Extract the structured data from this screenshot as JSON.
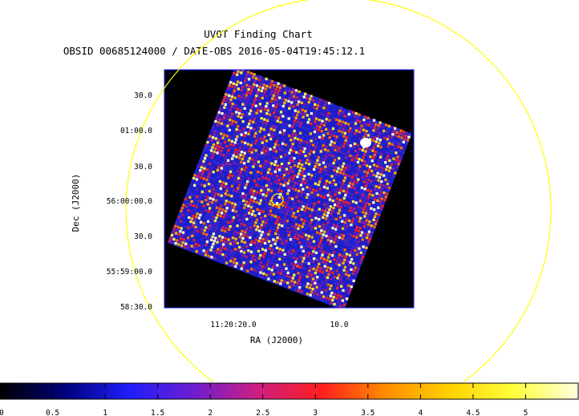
{
  "chart_data": {
    "type": "heatmap",
    "title": "UVOT Finding Chart",
    "subtitle": "OBSID 00685124000 / DATE-OBS 2016-05-04T19:45:12.1",
    "xlabel": "RA (J2000)",
    "ylabel": "Dec (J2000)",
    "x_ticks": [
      {
        "label": "11:20:20.0",
        "value": "11:20:20.0"
      },
      {
        "label": "10.0",
        "value": "11:20:10.0"
      }
    ],
    "y_ticks": [
      {
        "label": "30.0",
        "value": "+56:01:30.0"
      },
      {
        "label": "01:00.0",
        "value": "+56:01:00.0"
      },
      {
        "label": "30.0",
        "value": "+56:00:30.0"
      },
      {
        "label": "56:00:00.0",
        "value": "+56:00:00.0"
      },
      {
        "label": "30.0",
        "value": "+55:59:30.0"
      },
      {
        "label": "55:59:00.0",
        "value": "+55:59:00.0"
      },
      {
        "label": "58:30.0",
        "value": "+55:58:30.0"
      }
    ],
    "colorbar": {
      "range": [
        0,
        5.5
      ],
      "ticks": [
        "0",
        "0.5",
        "1",
        "1.5",
        "2",
        "2.5",
        "3",
        "3.5",
        "4",
        "4.5",
        "5"
      ],
      "colors": [
        "#000000",
        "#00007a",
        "#1e1efa",
        "#6c1ed2",
        "#cc1e82",
        "#ff1e1e",
        "#ff8c00",
        "#ffd200",
        "#ffff3c",
        "#ffffe0"
      ]
    },
    "grid": false,
    "overlays": [
      {
        "shape": "circle",
        "color": "#ffff00",
        "desc": "large error circle"
      },
      {
        "shape": "circle",
        "color": "#ffff00",
        "desc": "target marker"
      }
    ],
    "colors": {
      "background": "#000000",
      "frame": "#1a1aff",
      "overlay": "#ffff00"
    }
  }
}
